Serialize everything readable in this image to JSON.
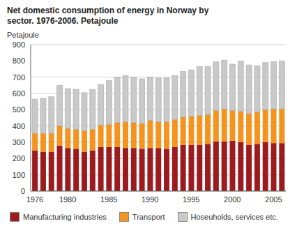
{
  "chart_data": {
    "type": "bar",
    "title": "Net domestic consumption of energy in Norway by sector. 1976-2006. Petajoule",
    "y_label": "Petajoule",
    "categories": [
      "1976",
      null,
      null,
      null,
      "1980",
      null,
      null,
      null,
      null,
      "1985",
      null,
      null,
      null,
      null,
      "1990",
      null,
      null,
      null,
      null,
      "1995",
      null,
      null,
      null,
      null,
      "2000",
      null,
      null,
      null,
      null,
      "2005",
      null
    ],
    "series": [
      {
        "name": "Manufacturing industries",
        "color": "#9b1b1f",
        "values": [
          250,
          240,
          240,
          280,
          265,
          260,
          240,
          250,
          270,
          270,
          270,
          265,
          265,
          260,
          265,
          265,
          260,
          270,
          285,
          285,
          285,
          290,
          305,
          305,
          310,
          300,
          285,
          290,
          300,
          295,
          295
        ]
      },
      {
        "name": "Transport",
        "color": "#f5931f",
        "values": [
          105,
          115,
          115,
          120,
          120,
          120,
          130,
          130,
          135,
          140,
          150,
          160,
          155,
          155,
          170,
          160,
          165,
          170,
          170,
          175,
          180,
          180,
          190,
          200,
          185,
          190,
          190,
          195,
          200,
          210,
          210
        ]
      },
      {
        "name": "Hoseuholds, services etc.",
        "color": "#c9c9c9",
        "values": [
          210,
          215,
          225,
          250,
          245,
          245,
          235,
          245,
          250,
          270,
          280,
          285,
          280,
          275,
          265,
          270,
          270,
          270,
          280,
          285,
          300,
          295,
          300,
          300,
          285,
          310,
          300,
          285,
          290,
          290,
          295
        ]
      }
    ],
    "ylim": [
      0,
      900
    ],
    "yticks": [
      0,
      100,
      200,
      300,
      400,
      500,
      600,
      700,
      800,
      900
    ],
    "grid": true,
    "stacked": true,
    "legend": "bottom"
  }
}
